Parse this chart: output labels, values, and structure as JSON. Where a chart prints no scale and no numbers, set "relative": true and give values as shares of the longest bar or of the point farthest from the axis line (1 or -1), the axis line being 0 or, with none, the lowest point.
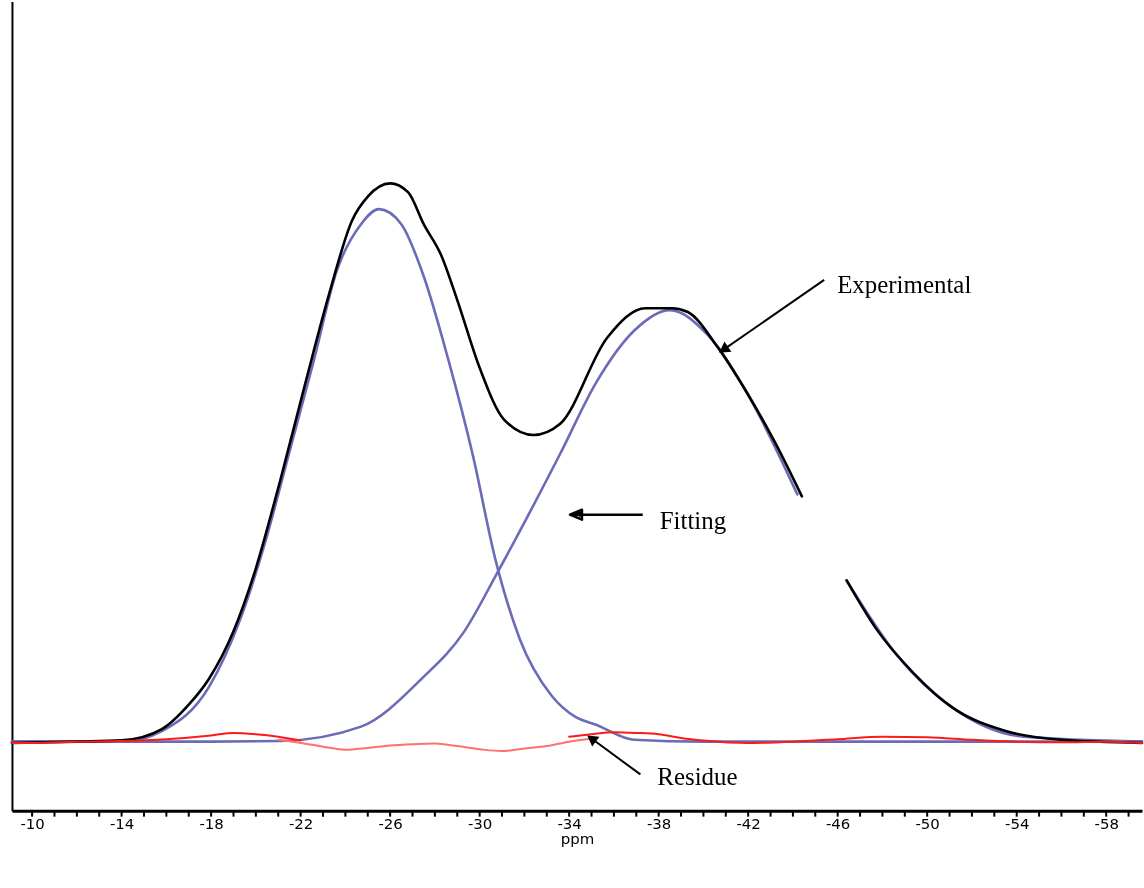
{
  "chart_data": {
    "type": "line",
    "relative": true,
    "xlabel": "ppm",
    "xlim": [
      -9.1,
      -59.6
    ],
    "xticks": [
      -10,
      {
        "value": -11,
        "label": null
      },
      {
        "value": -12,
        "label": null
      },
      {
        "value": -13,
        "label": null
      },
      -14,
      {
        "value": -15,
        "label": null
      },
      {
        "value": -16,
        "label": null
      },
      {
        "value": -17,
        "label": null
      },
      -18,
      {
        "value": -19,
        "label": null
      },
      {
        "value": -20,
        "label": null
      },
      {
        "value": -21,
        "label": null
      },
      -22,
      {
        "value": -23,
        "label": null
      },
      {
        "value": -24,
        "label": null
      },
      {
        "value": -25,
        "label": null
      },
      -26,
      {
        "value": -27,
        "label": null
      },
      {
        "value": -28,
        "label": null
      },
      {
        "value": -29,
        "label": null
      },
      -30,
      {
        "value": -31,
        "label": null
      },
      {
        "value": -32,
        "label": null
      },
      {
        "value": -33,
        "label": null
      },
      -34,
      {
        "value": -35,
        "label": null
      },
      {
        "value": -36,
        "label": null
      },
      {
        "value": -37,
        "label": null
      },
      -38,
      {
        "value": -39,
        "label": null
      },
      {
        "value": -40,
        "label": null
      },
      {
        "value": -41,
        "label": null
      },
      -42,
      {
        "value": -43,
        "label": null
      },
      {
        "value": -44,
        "label": null
      },
      {
        "value": -45,
        "label": null
      },
      -46,
      {
        "value": -47,
        "label": null
      },
      {
        "value": -48,
        "label": null
      },
      {
        "value": -49,
        "label": null
      },
      -50,
      {
        "value": -51,
        "label": null
      },
      {
        "value": -52,
        "label": null
      },
      {
        "value": -53,
        "label": null
      },
      -54,
      {
        "value": -55,
        "label": null
      },
      {
        "value": -56,
        "label": null
      },
      {
        "value": -57,
        "label": null
      },
      -58,
      {
        "value": -59,
        "label": null
      }
    ],
    "tick_labels": "x",
    "grid": false,
    "marker": "none",
    "line_style": "solid",
    "series": [
      {
        "color": "#6b6bb8",
        "x": [
          -9.1,
          -14,
          -15.8,
          -17.9,
          -19.3,
          -20.4,
          -21.5,
          -22.6,
          -23.6,
          -24.7,
          -25.5,
          -26.5,
          -27.5,
          -28.6,
          -29.7,
          -30.7,
          -31.8,
          -33.2,
          -34.3,
          -35.2,
          -36.9,
          -40,
          -59.6
        ],
        "values": [
          0.11,
          0.11,
          0.127,
          0.197,
          0.305,
          0.426,
          0.572,
          0.719,
          0.859,
          0.935,
          0.959,
          0.935,
          0.852,
          0.719,
          0.566,
          0.401,
          0.273,
          0.184,
          0.149,
          0.137,
          0.113,
          0.11,
          0.11
        ]
      },
      {
        "color": "#6b6bb8",
        "x": [
          -9.1,
          -18,
          -21.1,
          -24.7,
          -27.4,
          -29.3,
          -30.8,
          -33.6,
          -35.2,
          -36.9,
          -38.5,
          -40.2,
          -41.9,
          -44.2,
          -45.4,
          -46.4,
          -48.6,
          -51.1,
          -54.3,
          -59.6
        ],
        "values": [
          0.11,
          0.11,
          0.111,
          0.134,
          0.21,
          0.285,
          0.38,
          0.569,
          0.682,
          0.765,
          0.798,
          0.758,
          0.669,
          0.504,
          null,
          0.367,
          0.25,
          0.165,
          0.118,
          0.11
        ]
      },
      {
        "color": "#ff7070",
        "x": [
          -21,
          -22,
          -23,
          -24,
          -25,
          -26,
          -27,
          -28,
          -29,
          -30,
          -31,
          -32,
          -33,
          -34,
          -35
        ],
        "values": [
          0.113,
          0.108,
          0.102,
          0.097,
          0.1,
          0.104,
          0.106,
          0.107,
          0.103,
          0.098,
          0.095,
          0.099,
          0.103,
          0.11,
          0.115
        ]
      },
      {
        "color": "#ff1a1a",
        "x": [
          -9.1,
          -10,
          -12,
          -14,
          -16,
          -18,
          -19,
          -20,
          -21,
          -22,
          -23,
          -33,
          -34,
          -35,
          -36,
          -37,
          -38,
          -39,
          -40,
          -42,
          -44,
          -46,
          -48,
          -50,
          -52,
          -54,
          -56,
          -58,
          -59.6
        ],
        "values": [
          0.108,
          0.108,
          0.11,
          0.111,
          0.114,
          0.12,
          0.124,
          0.122,
          0.118,
          0.112,
          null,
          null,
          0.118,
          0.122,
          0.125,
          0.124,
          0.122,
          0.116,
          0.112,
          0.108,
          0.11,
          0.114,
          0.118,
          0.117,
          0.113,
          0.11,
          0.109,
          0.11,
          0.108
        ]
      },
      {
        "color": "#000000",
        "x": [
          -9.1,
          -12,
          -14,
          -15.8,
          -17.0,
          -17.9,
          -19.0,
          -19.9,
          -21.1,
          -22.2,
          -23.3,
          -24.3,
          -25.0,
          -26.0,
          -26.8,
          -27.5,
          -28.3,
          -29.0,
          -30.0,
          -31.1,
          -32.4,
          -33.6,
          -35.7,
          -37.4,
          -38.6,
          -39.3,
          -40.6,
          -41.9,
          -43.2,
          -44.4,
          -45.4,
          -46.4,
          -47.7,
          -49.4,
          -51.1,
          -53.5,
          -56.0,
          -59.6
        ],
        "values": [
          0.108,
          0.11,
          0.112,
          0.13,
          0.169,
          0.21,
          0.286,
          0.375,
          0.528,
          0.68,
          0.827,
          0.941,
          0.979,
          1.0,
          0.986,
          0.935,
          0.884,
          0.814,
          0.706,
          0.623,
          0.599,
          0.617,
          0.754,
          0.801,
          0.801,
          0.795,
          0.741,
          0.669,
          0.587,
          0.501,
          null,
          0.367,
          0.291,
          0.219,
          0.165,
          0.127,
          0.113,
          0.108
        ]
      }
    ],
    "annotations": [
      {
        "text": "Experimental",
        "x": -40.9,
        "y": 0.735
      },
      "Fitting",
      {
        "text": "Residue",
        "x": -35,
        "y": 0.115
      }
    ]
  }
}
